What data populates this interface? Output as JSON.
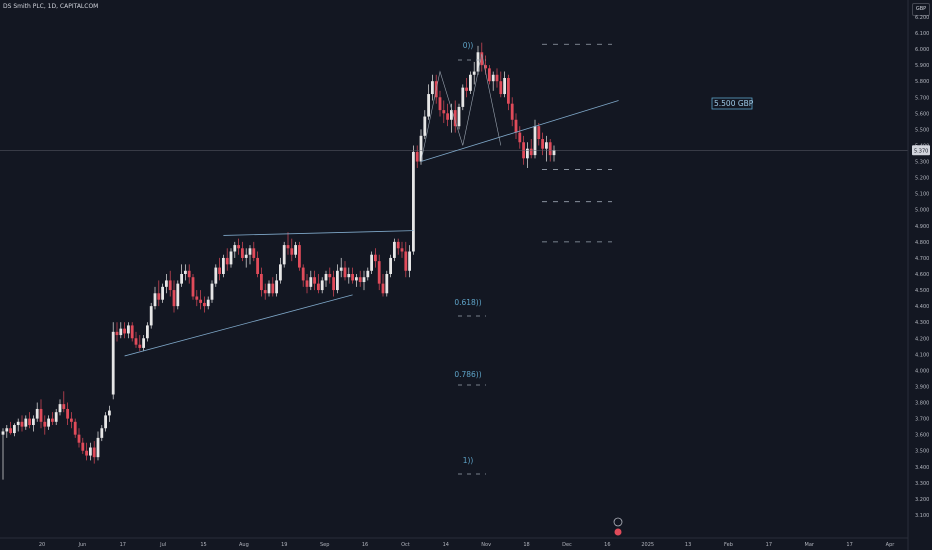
{
  "header": {
    "symbol_title": "DS Smith PLC, 1D, CAPITALCOM",
    "currency": "GBP"
  },
  "colors": {
    "background": "#131722",
    "up": "#e6e6e6",
    "down": "#e04b5a",
    "trendline": "#7fa8c9",
    "fib": "#5ea3c7",
    "axis_text": "#b2b5be"
  },
  "chart_data": {
    "type": "candlestick",
    "y_axis": {
      "min": 3.1,
      "max": 6.2,
      "step": 0.1,
      "tick_labels": [
        "3.100",
        "3.200",
        "3.300",
        "3.400",
        "3.500",
        "3.600",
        "3.700",
        "3.800",
        "3.900",
        "4.000",
        "4.100",
        "4.200",
        "4.300",
        "4.400",
        "4.500",
        "4.600",
        "4.700",
        "4.800",
        "4.900",
        "5.000",
        "5.100",
        "5.200",
        "5.300",
        "5.400",
        "5.500",
        "5.600",
        "5.700",
        "5.800",
        "5.900",
        "6.000",
        "6.100",
        "6.200"
      ],
      "position": "right"
    },
    "x_axis": {
      "tick_labels": [
        "20",
        "Jun",
        "17",
        "Jul",
        "15",
        "Aug",
        "19",
        "Sep",
        "16",
        "Oct",
        "14",
        "Nov",
        "18",
        "Dec",
        "16",
        "2025",
        "13",
        "Feb",
        "17",
        "Mar",
        "17",
        "Apr"
      ]
    },
    "last_price": {
      "value": 5.37,
      "label": "5.370"
    },
    "annotations": [
      {
        "type": "price_label",
        "text": "5.500 GBP"
      },
      {
        "type": "fib_level",
        "text": "0))",
        "level": 0
      },
      {
        "type": "fib_level",
        "text": "0.618))",
        "level": 0.618
      },
      {
        "type": "fib_level",
        "text": "0.786))",
        "level": 0.786
      },
      {
        "type": "fib_level",
        "text": "1))",
        "level": 1
      }
    ],
    "fib_projection_levels": [
      6.03,
      5.25,
      5.05,
      4.8
    ],
    "trendlines": [
      {
        "name": "lower-channel",
        "from": {
          "bar": 32,
          "price": 4.09
        },
        "to": {
          "bar": 92,
          "price": 4.47
        }
      },
      {
        "name": "upper-channel",
        "from": {
          "bar": 58,
          "price": 4.84
        },
        "to": {
          "bar": 108,
          "price": 4.87
        }
      },
      {
        "name": "rising-support",
        "from": {
          "bar": 110,
          "price": 5.3
        },
        "to": {
          "bar": 162,
          "price": 5.68
        }
      }
    ],
    "candles": [
      {
        "o": 3.6,
        "h": 3.64,
        "l": 3.32,
        "c": 3.62
      },
      {
        "o": 3.62,
        "h": 3.66,
        "l": 3.58,
        "c": 3.64
      },
      {
        "o": 3.64,
        "h": 3.68,
        "l": 3.6,
        "c": 3.61
      },
      {
        "o": 3.61,
        "h": 3.67,
        "l": 3.59,
        "c": 3.66
      },
      {
        "o": 3.66,
        "h": 3.7,
        "l": 3.62,
        "c": 3.68
      },
      {
        "o": 3.68,
        "h": 3.72,
        "l": 3.62,
        "c": 3.65
      },
      {
        "o": 3.65,
        "h": 3.72,
        "l": 3.63,
        "c": 3.7
      },
      {
        "o": 3.7,
        "h": 3.74,
        "l": 3.64,
        "c": 3.66
      },
      {
        "o": 3.66,
        "h": 3.72,
        "l": 3.62,
        "c": 3.7
      },
      {
        "o": 3.7,
        "h": 3.8,
        "l": 3.68,
        "c": 3.76
      },
      {
        "o": 3.76,
        "h": 3.82,
        "l": 3.64,
        "c": 3.68
      },
      {
        "o": 3.68,
        "h": 3.72,
        "l": 3.6,
        "c": 3.65
      },
      {
        "o": 3.65,
        "h": 3.72,
        "l": 3.63,
        "c": 3.7
      },
      {
        "o": 3.7,
        "h": 3.74,
        "l": 3.66,
        "c": 3.68
      },
      {
        "o": 3.68,
        "h": 3.76,
        "l": 3.66,
        "c": 3.74
      },
      {
        "o": 3.74,
        "h": 3.82,
        "l": 3.72,
        "c": 3.79
      },
      {
        "o": 3.79,
        "h": 3.87,
        "l": 3.74,
        "c": 3.76
      },
      {
        "o": 3.76,
        "h": 3.8,
        "l": 3.66,
        "c": 3.7
      },
      {
        "o": 3.7,
        "h": 3.74,
        "l": 3.64,
        "c": 3.68
      },
      {
        "o": 3.68,
        "h": 3.7,
        "l": 3.58,
        "c": 3.6
      },
      {
        "o": 3.6,
        "h": 3.64,
        "l": 3.52,
        "c": 3.55
      },
      {
        "o": 3.55,
        "h": 3.58,
        "l": 3.48,
        "c": 3.5
      },
      {
        "o": 3.5,
        "h": 3.55,
        "l": 3.44,
        "c": 3.47
      },
      {
        "o": 3.47,
        "h": 3.55,
        "l": 3.44,
        "c": 3.52
      },
      {
        "o": 3.52,
        "h": 3.56,
        "l": 3.42,
        "c": 3.46
      },
      {
        "o": 3.46,
        "h": 3.62,
        "l": 3.44,
        "c": 3.58
      },
      {
        "o": 3.58,
        "h": 3.66,
        "l": 3.56,
        "c": 3.64
      },
      {
        "o": 3.64,
        "h": 3.74,
        "l": 3.62,
        "c": 3.72
      },
      {
        "o": 3.72,
        "h": 3.78,
        "l": 3.68,
        "c": 3.75
      },
      {
        "o": 3.85,
        "h": 4.3,
        "l": 3.82,
        "c": 4.24
      },
      {
        "o": 4.24,
        "h": 4.3,
        "l": 4.18,
        "c": 4.22
      },
      {
        "o": 4.22,
        "h": 4.3,
        "l": 4.2,
        "c": 4.26
      },
      {
        "o": 4.26,
        "h": 4.3,
        "l": 4.2,
        "c": 4.23
      },
      {
        "o": 4.23,
        "h": 4.3,
        "l": 4.2,
        "c": 4.28
      },
      {
        "o": 4.28,
        "h": 4.3,
        "l": 4.18,
        "c": 4.2
      },
      {
        "o": 4.2,
        "h": 4.24,
        "l": 4.14,
        "c": 4.16
      },
      {
        "o": 4.16,
        "h": 4.22,
        "l": 4.12,
        "c": 4.14
      },
      {
        "o": 4.14,
        "h": 4.22,
        "l": 4.12,
        "c": 4.2
      },
      {
        "o": 4.2,
        "h": 4.3,
        "l": 4.18,
        "c": 4.28
      },
      {
        "o": 4.28,
        "h": 4.42,
        "l": 4.26,
        "c": 4.4
      },
      {
        "o": 4.4,
        "h": 4.52,
        "l": 4.38,
        "c": 4.48
      },
      {
        "o": 4.48,
        "h": 4.56,
        "l": 4.4,
        "c": 4.44
      },
      {
        "o": 4.44,
        "h": 4.54,
        "l": 4.42,
        "c": 4.52
      },
      {
        "o": 4.52,
        "h": 4.6,
        "l": 4.48,
        "c": 4.56
      },
      {
        "o": 4.56,
        "h": 4.62,
        "l": 4.46,
        "c": 4.5
      },
      {
        "o": 4.5,
        "h": 4.56,
        "l": 4.36,
        "c": 4.4
      },
      {
        "o": 4.4,
        "h": 4.56,
        "l": 4.38,
        "c": 4.54
      },
      {
        "o": 4.54,
        "h": 4.66,
        "l": 4.52,
        "c": 4.6
      },
      {
        "o": 4.6,
        "h": 4.66,
        "l": 4.56,
        "c": 4.62
      },
      {
        "o": 4.62,
        "h": 4.66,
        "l": 4.54,
        "c": 4.58
      },
      {
        "o": 4.58,
        "h": 4.6,
        "l": 4.44,
        "c": 4.46
      },
      {
        "o": 4.46,
        "h": 4.5,
        "l": 4.4,
        "c": 4.44
      },
      {
        "o": 4.44,
        "h": 4.5,
        "l": 4.38,
        "c": 4.42
      },
      {
        "o": 4.42,
        "h": 4.46,
        "l": 4.36,
        "c": 4.4
      },
      {
        "o": 4.4,
        "h": 4.46,
        "l": 4.38,
        "c": 4.44
      },
      {
        "o": 4.44,
        "h": 4.56,
        "l": 4.42,
        "c": 4.54
      },
      {
        "o": 4.54,
        "h": 4.66,
        "l": 4.52,
        "c": 4.64
      },
      {
        "o": 4.64,
        "h": 4.7,
        "l": 4.56,
        "c": 4.6
      },
      {
        "o": 4.6,
        "h": 4.72,
        "l": 4.58,
        "c": 4.7
      },
      {
        "o": 4.7,
        "h": 4.76,
        "l": 4.62,
        "c": 4.66
      },
      {
        "o": 4.66,
        "h": 4.76,
        "l": 4.64,
        "c": 4.74
      },
      {
        "o": 4.74,
        "h": 4.8,
        "l": 4.7,
        "c": 4.78
      },
      {
        "o": 4.78,
        "h": 4.82,
        "l": 4.72,
        "c": 4.76
      },
      {
        "o": 4.76,
        "h": 4.8,
        "l": 4.68,
        "c": 4.7
      },
      {
        "o": 4.7,
        "h": 4.76,
        "l": 4.64,
        "c": 4.72
      },
      {
        "o": 4.72,
        "h": 4.78,
        "l": 4.66,
        "c": 4.76
      },
      {
        "o": 4.76,
        "h": 4.8,
        "l": 4.68,
        "c": 4.7
      },
      {
        "o": 4.7,
        "h": 4.74,
        "l": 4.58,
        "c": 4.6
      },
      {
        "o": 4.6,
        "h": 4.64,
        "l": 4.46,
        "c": 4.5
      },
      {
        "o": 4.5,
        "h": 4.54,
        "l": 4.44,
        "c": 4.48
      },
      {
        "o": 4.48,
        "h": 4.56,
        "l": 4.46,
        "c": 4.54
      },
      {
        "o": 4.54,
        "h": 4.58,
        "l": 4.46,
        "c": 4.48
      },
      {
        "o": 4.48,
        "h": 4.6,
        "l": 4.46,
        "c": 4.56
      },
      {
        "o": 4.56,
        "h": 4.7,
        "l": 4.54,
        "c": 4.66
      },
      {
        "o": 4.66,
        "h": 4.8,
        "l": 4.64,
        "c": 4.78
      },
      {
        "o": 4.78,
        "h": 4.86,
        "l": 4.72,
        "c": 4.76
      },
      {
        "o": 4.76,
        "h": 4.82,
        "l": 4.68,
        "c": 4.72
      },
      {
        "o": 4.72,
        "h": 4.8,
        "l": 4.7,
        "c": 4.78
      },
      {
        "o": 4.78,
        "h": 4.8,
        "l": 4.62,
        "c": 4.64
      },
      {
        "o": 4.64,
        "h": 4.66,
        "l": 4.52,
        "c": 4.56
      },
      {
        "o": 4.56,
        "h": 4.6,
        "l": 4.48,
        "c": 4.52
      },
      {
        "o": 4.52,
        "h": 4.62,
        "l": 4.5,
        "c": 4.58
      },
      {
        "o": 4.58,
        "h": 4.62,
        "l": 4.5,
        "c": 4.54
      },
      {
        "o": 4.54,
        "h": 4.6,
        "l": 4.48,
        "c": 4.5
      },
      {
        "o": 4.5,
        "h": 4.58,
        "l": 4.48,
        "c": 4.56
      },
      {
        "o": 4.56,
        "h": 4.62,
        "l": 4.52,
        "c": 4.6
      },
      {
        "o": 4.6,
        "h": 4.64,
        "l": 4.54,
        "c": 4.58
      },
      {
        "o": 4.58,
        "h": 4.62,
        "l": 4.46,
        "c": 4.5
      },
      {
        "o": 4.5,
        "h": 4.66,
        "l": 4.48,
        "c": 4.62
      },
      {
        "o": 4.62,
        "h": 4.7,
        "l": 4.58,
        "c": 4.64
      },
      {
        "o": 4.64,
        "h": 4.68,
        "l": 4.56,
        "c": 4.58
      },
      {
        "o": 4.58,
        "h": 4.64,
        "l": 4.54,
        "c": 4.6
      },
      {
        "o": 4.6,
        "h": 4.64,
        "l": 4.54,
        "c": 4.56
      },
      {
        "o": 4.56,
        "h": 4.6,
        "l": 4.52,
        "c": 4.58
      },
      {
        "o": 4.58,
        "h": 4.62,
        "l": 4.52,
        "c": 4.55
      },
      {
        "o": 4.55,
        "h": 4.62,
        "l": 4.5,
        "c": 4.58
      },
      {
        "o": 4.58,
        "h": 4.64,
        "l": 4.56,
        "c": 4.62
      },
      {
        "o": 4.62,
        "h": 4.74,
        "l": 4.6,
        "c": 4.72
      },
      {
        "o": 4.72,
        "h": 4.76,
        "l": 4.64,
        "c": 4.68
      },
      {
        "o": 4.68,
        "h": 4.72,
        "l": 4.5,
        "c": 4.54
      },
      {
        "o": 4.54,
        "h": 4.6,
        "l": 4.46,
        "c": 4.48
      },
      {
        "o": 4.48,
        "h": 4.62,
        "l": 4.46,
        "c": 4.6
      },
      {
        "o": 4.6,
        "h": 4.72,
        "l": 4.58,
        "c": 4.7
      },
      {
        "o": 4.7,
        "h": 4.82,
        "l": 4.68,
        "c": 4.8
      },
      {
        "o": 4.8,
        "h": 4.82,
        "l": 4.72,
        "c": 4.76
      },
      {
        "o": 4.76,
        "h": 4.8,
        "l": 4.7,
        "c": 4.74
      },
      {
        "o": 4.74,
        "h": 4.8,
        "l": 4.58,
        "c": 4.62
      },
      {
        "o": 4.62,
        "h": 4.78,
        "l": 4.58,
        "c": 4.74
      },
      {
        "o": 4.74,
        "h": 5.4,
        "l": 4.72,
        "c": 5.36
      },
      {
        "o": 5.36,
        "h": 5.4,
        "l": 5.26,
        "c": 5.3
      },
      {
        "o": 5.3,
        "h": 5.5,
        "l": 5.28,
        "c": 5.46
      },
      {
        "o": 5.46,
        "h": 5.62,
        "l": 5.44,
        "c": 5.58
      },
      {
        "o": 5.58,
        "h": 5.78,
        "l": 5.56,
        "c": 5.72
      },
      {
        "o": 5.72,
        "h": 5.84,
        "l": 5.68,
        "c": 5.8
      },
      {
        "o": 5.8,
        "h": 5.84,
        "l": 5.66,
        "c": 5.7
      },
      {
        "o": 5.7,
        "h": 5.74,
        "l": 5.58,
        "c": 5.62
      },
      {
        "o": 5.62,
        "h": 5.68,
        "l": 5.54,
        "c": 5.6
      },
      {
        "o": 5.6,
        "h": 5.66,
        "l": 5.52,
        "c": 5.56
      },
      {
        "o": 5.56,
        "h": 5.66,
        "l": 5.48,
        "c": 5.62
      },
      {
        "o": 5.62,
        "h": 5.68,
        "l": 5.48,
        "c": 5.52
      },
      {
        "o": 5.52,
        "h": 5.66,
        "l": 5.5,
        "c": 5.64
      },
      {
        "o": 5.64,
        "h": 5.78,
        "l": 5.62,
        "c": 5.76
      },
      {
        "o": 5.76,
        "h": 5.82,
        "l": 5.7,
        "c": 5.74
      },
      {
        "o": 5.74,
        "h": 5.86,
        "l": 5.72,
        "c": 5.84
      },
      {
        "o": 5.84,
        "h": 5.92,
        "l": 5.78,
        "c": 5.86
      },
      {
        "o": 5.86,
        "h": 6.02,
        "l": 5.84,
        "c": 5.98
      },
      {
        "o": 5.98,
        "h": 6.04,
        "l": 5.86,
        "c": 5.9
      },
      {
        "o": 5.9,
        "h": 5.96,
        "l": 5.84,
        "c": 5.88
      },
      {
        "o": 5.88,
        "h": 5.9,
        "l": 5.78,
        "c": 5.8
      },
      {
        "o": 5.8,
        "h": 5.86,
        "l": 5.74,
        "c": 5.84
      },
      {
        "o": 5.84,
        "h": 5.88,
        "l": 5.76,
        "c": 5.8
      },
      {
        "o": 5.8,
        "h": 5.86,
        "l": 5.7,
        "c": 5.72
      },
      {
        "o": 5.72,
        "h": 5.86,
        "l": 5.7,
        "c": 5.82
      },
      {
        "o": 5.82,
        "h": 5.84,
        "l": 5.62,
        "c": 5.66
      },
      {
        "o": 5.66,
        "h": 5.7,
        "l": 5.52,
        "c": 5.56
      },
      {
        "o": 5.56,
        "h": 5.6,
        "l": 5.44,
        "c": 5.48
      },
      {
        "o": 5.48,
        "h": 5.52,
        "l": 5.38,
        "c": 5.42
      },
      {
        "o": 5.42,
        "h": 5.46,
        "l": 5.28,
        "c": 5.32
      },
      {
        "o": 5.32,
        "h": 5.42,
        "l": 5.26,
        "c": 5.38
      },
      {
        "o": 5.38,
        "h": 5.44,
        "l": 5.32,
        "c": 5.34
      },
      {
        "o": 5.34,
        "h": 5.56,
        "l": 5.32,
        "c": 5.52
      },
      {
        "o": 5.52,
        "h": 5.54,
        "l": 5.4,
        "c": 5.44
      },
      {
        "o": 5.44,
        "h": 5.48,
        "l": 5.34,
        "c": 5.38
      },
      {
        "o": 5.38,
        "h": 5.46,
        "l": 5.3,
        "c": 5.42
      },
      {
        "o": 5.42,
        "h": 5.44,
        "l": 5.3,
        "c": 5.34
      },
      {
        "o": 5.34,
        "h": 5.4,
        "l": 5.3,
        "c": 5.37
      }
    ]
  }
}
